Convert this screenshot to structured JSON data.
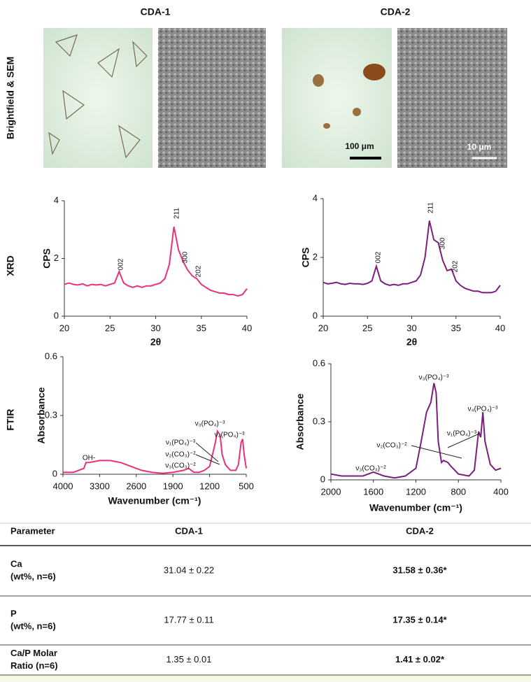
{
  "columns": [
    "CDA-1",
    "CDA-2"
  ],
  "row_labels": [
    "Brightfield & SEM",
    "XRD",
    "FTIR"
  ],
  "scale_bars": [
    "100 μm",
    "10 μm"
  ],
  "chart_data": [
    {
      "type": "line",
      "xlabel": "2θ",
      "ylabel": "CPS",
      "color": "#e8327c",
      "x": [
        20,
        20.5,
        21,
        21.5,
        22,
        22.5,
        23,
        23.5,
        24,
        24.5,
        25,
        25.5,
        26,
        26.5,
        27,
        27.5,
        28,
        28.5,
        29,
        29.5,
        30,
        30.5,
        31,
        31.5,
        32,
        32.5,
        33,
        33.5,
        34,
        34.5,
        35,
        35.5,
        36,
        36.5,
        37,
        37.5,
        38,
        38.5,
        39,
        39.5,
        40
      ],
      "values": [
        1.1,
        1.15,
        1.1,
        1.08,
        1.12,
        1.05,
        1.1,
        1.08,
        1.1,
        1.05,
        1.1,
        1.15,
        1.55,
        1.15,
        1.05,
        1.0,
        1.05,
        1.0,
        1.05,
        1.05,
        1.1,
        1.15,
        1.3,
        1.8,
        3.1,
        2.3,
        1.9,
        1.6,
        1.4,
        1.3,
        1.1,
        1.0,
        0.9,
        0.85,
        0.8,
        0.8,
        0.75,
        0.75,
        0.7,
        0.75,
        0.95
      ],
      "xlim": [
        20,
        40
      ],
      "ylim": [
        0,
        4
      ],
      "xticks": [
        20,
        25,
        30,
        35,
        40
      ],
      "yticks": [
        0,
        2,
        4
      ],
      "annotations": [
        "002",
        "211",
        "300",
        "202"
      ]
    },
    {
      "type": "line",
      "xlabel": "2θ",
      "ylabel": "CPS",
      "color": "#7b1f7a",
      "x": [
        20,
        20.5,
        21,
        21.5,
        22,
        22.5,
        23,
        23.5,
        24,
        24.5,
        25,
        25.5,
        26,
        26.5,
        27,
        27.5,
        28,
        28.5,
        29,
        29.5,
        30,
        30.5,
        31,
        31.5,
        32,
        32.5,
        33,
        33.5,
        34,
        34.5,
        35,
        35.5,
        36,
        36.5,
        37,
        37.5,
        38,
        38.5,
        39,
        39.5,
        40
      ],
      "values": [
        1.15,
        1.1,
        1.12,
        1.15,
        1.1,
        1.08,
        1.12,
        1.1,
        1.1,
        1.08,
        1.12,
        1.2,
        1.7,
        1.2,
        1.1,
        1.05,
        1.08,
        1.05,
        1.1,
        1.1,
        1.15,
        1.2,
        1.4,
        2.0,
        3.25,
        2.6,
        2.5,
        1.9,
        1.55,
        1.6,
        1.2,
        1.05,
        0.95,
        0.9,
        0.85,
        0.85,
        0.8,
        0.8,
        0.8,
        0.85,
        1.05
      ],
      "xlim": [
        20,
        40
      ],
      "ylim": [
        0,
        4
      ],
      "xticks": [
        20,
        25,
        30,
        35,
        40
      ],
      "yticks": [
        0,
        2,
        4
      ],
      "annotations": [
        "002",
        "211",
        "300",
        "202"
      ]
    },
    {
      "type": "line",
      "xlabel": "Wavenumber (cm⁻¹)",
      "ylabel": "Absorbance",
      "color": "#e8327c",
      "x": [
        4000,
        3800,
        3600,
        3560,
        3500,
        3300,
        3100,
        2900,
        2700,
        2500,
        2300,
        2100,
        1900,
        1700,
        1600,
        1500,
        1400,
        1300,
        1200,
        1100,
        1050,
        1000,
        960,
        900,
        870,
        800,
        700,
        650,
        600,
        570,
        540,
        500
      ],
      "values": [
        0.01,
        0.01,
        0.03,
        0.06,
        0.06,
        0.07,
        0.07,
        0.06,
        0.04,
        0.02,
        0.01,
        0.005,
        0.01,
        0.02,
        0.03,
        0.01,
        0.01,
        0.02,
        0.04,
        0.15,
        0.22,
        0.2,
        0.1,
        0.05,
        0.04,
        0.02,
        0.02,
        0.05,
        0.16,
        0.18,
        0.1,
        0.03
      ],
      "xlim": [
        4000,
        500
      ],
      "ylim": [
        0,
        0.6
      ],
      "xticks": [
        4000,
        3300,
        2600,
        1900,
        1200,
        500
      ],
      "yticks": [
        0,
        0.3,
        0.6
      ],
      "annotations": [
        "OH-",
        "ν₃(PO₄)⁻³",
        "ν₄(PO₄)⁻³",
        "ν₁(PO₄)⁻³",
        "ν₂(CO₃)⁻²",
        "ν₃(CO₃)⁻²"
      ]
    },
    {
      "type": "line",
      "xlabel": "Wavenumber (cm⁻¹)",
      "ylabel": "Absorbance",
      "color": "#7b1f7a",
      "x": [
        2000,
        1900,
        1800,
        1700,
        1650,
        1600,
        1550,
        1500,
        1400,
        1300,
        1200,
        1150,
        1100,
        1060,
        1030,
        1010,
        990,
        960,
        940,
        900,
        870,
        800,
        700,
        650,
        610,
        590,
        570,
        550,
        500,
        450,
        400
      ],
      "values": [
        0.03,
        0.02,
        0.02,
        0.02,
        0.03,
        0.04,
        0.03,
        0.02,
        0.01,
        0.02,
        0.06,
        0.2,
        0.35,
        0.4,
        0.5,
        0.45,
        0.2,
        0.09,
        0.1,
        0.09,
        0.07,
        0.03,
        0.02,
        0.05,
        0.25,
        0.22,
        0.35,
        0.2,
        0.08,
        0.05,
        0.06
      ],
      "xlim": [
        2000,
        400
      ],
      "ylim": [
        0,
        0.6
      ],
      "xticks": [
        2000,
        1600,
        1200,
        800,
        400
      ],
      "yticks": [
        0,
        0.3,
        0.6
      ],
      "annotations": [
        "ν₃(PO₄)⁻³",
        "ν₄(PO₄)⁻³",
        "ν₁(PO₄)⁻³",
        "ν₂(CO₃)⁻²",
        "ν₃(CO₃)⁻²"
      ]
    }
  ],
  "table": {
    "header": [
      "Parameter",
      "CDA-1",
      "CDA-2"
    ],
    "rows": [
      [
        "Ca",
        "(wt%, n=6)",
        "31.04 ± 0.22",
        "31.58 ± 0.36*"
      ],
      [
        "P",
        "(wt%, n=6)",
        "17.77 ± 0.11",
        "17.35 ± 0.14*"
      ],
      [
        "Ca/P Molar",
        "Ratio (n=6)",
        "1.35 ± 0.01",
        "1.41 ± 0.02*"
      ]
    ]
  }
}
